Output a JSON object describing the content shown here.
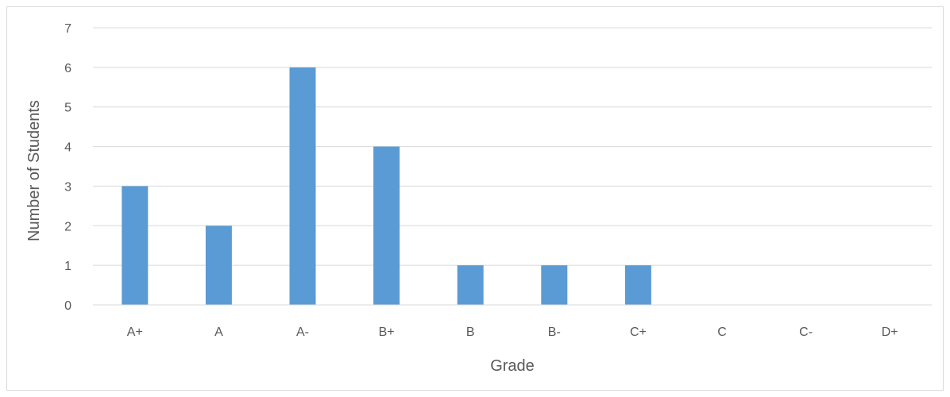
{
  "chart_data": {
    "type": "bar",
    "title": "",
    "xlabel": "Grade",
    "ylabel": "Number of Students",
    "categories": [
      "A+",
      "A",
      "A-",
      "B+",
      "B",
      "B-",
      "C+",
      "C",
      "C-",
      "D+"
    ],
    "values": [
      3,
      2,
      6,
      4,
      1,
      1,
      1,
      0,
      0,
      0
    ],
    "yticks": [
      "0",
      "1",
      "2",
      "3",
      "4",
      "5",
      "6",
      "7"
    ],
    "ylim": [
      0,
      7
    ],
    "grid": "horizontal",
    "legend": "none",
    "colors": {
      "bar": "#5b9bd5",
      "gridline": "#d9d9d9",
      "axis_line": "#d9d9d9",
      "text": "#595959"
    }
  }
}
